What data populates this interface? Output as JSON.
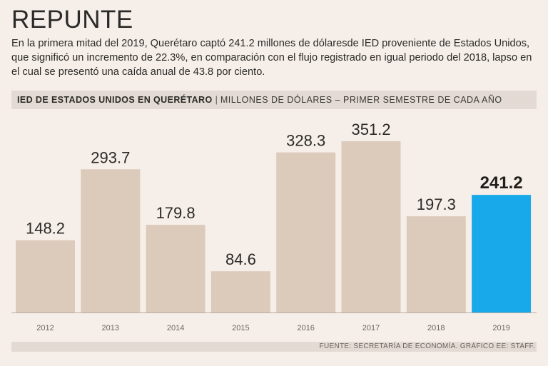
{
  "header": {
    "title": "REPUNTE",
    "intro": "En la primera mitad del 2019, Querétaro captó 241.2 millones de dólaresde IED proveniente de Estados Unidos, que significó un incremento de 22.3%, en comparación con el flujo registrado en igual periodo del 2018, lapso en el cual se presentó una caída anual de 43.8 por ciento."
  },
  "chart_band": {
    "title": "IED DE ESTADOS UNIDOS EN QUERÉTARO",
    "separator": "|",
    "subtitle": "MILLONES DE DÓLARES – PRIMER SEMESTRE DE CADA AÑO"
  },
  "colors": {
    "bar": "#dccabb",
    "highlight": "#17a9e9",
    "background": "#f6efe9",
    "band": "#e3dbd3"
  },
  "chart_data": {
    "type": "bar",
    "title": "IED DE ESTADOS UNIDOS EN QUERÉTARO",
    "ylabel": "MILLONES DE DÓLARES – PRIMER SEMESTRE DE CADA AÑO",
    "categories": [
      "2012",
      "2013",
      "2014",
      "2015",
      "2016",
      "2017",
      "2018",
      "2019"
    ],
    "values": [
      148.2,
      293.7,
      179.8,
      84.6,
      328.3,
      351.2,
      197.3,
      241.2
    ],
    "value_labels": [
      "148.2",
      "293.7",
      "179.8",
      "84.6",
      "328.3",
      "351.2",
      "197.3",
      "241.2"
    ],
    "highlight_index": 7,
    "ylim": [
      0,
      351.2
    ]
  },
  "footer": {
    "source": "FUENTE: SECRETARÍA DE ECONOMÍA. GRÁFICO EE: STAFF."
  }
}
